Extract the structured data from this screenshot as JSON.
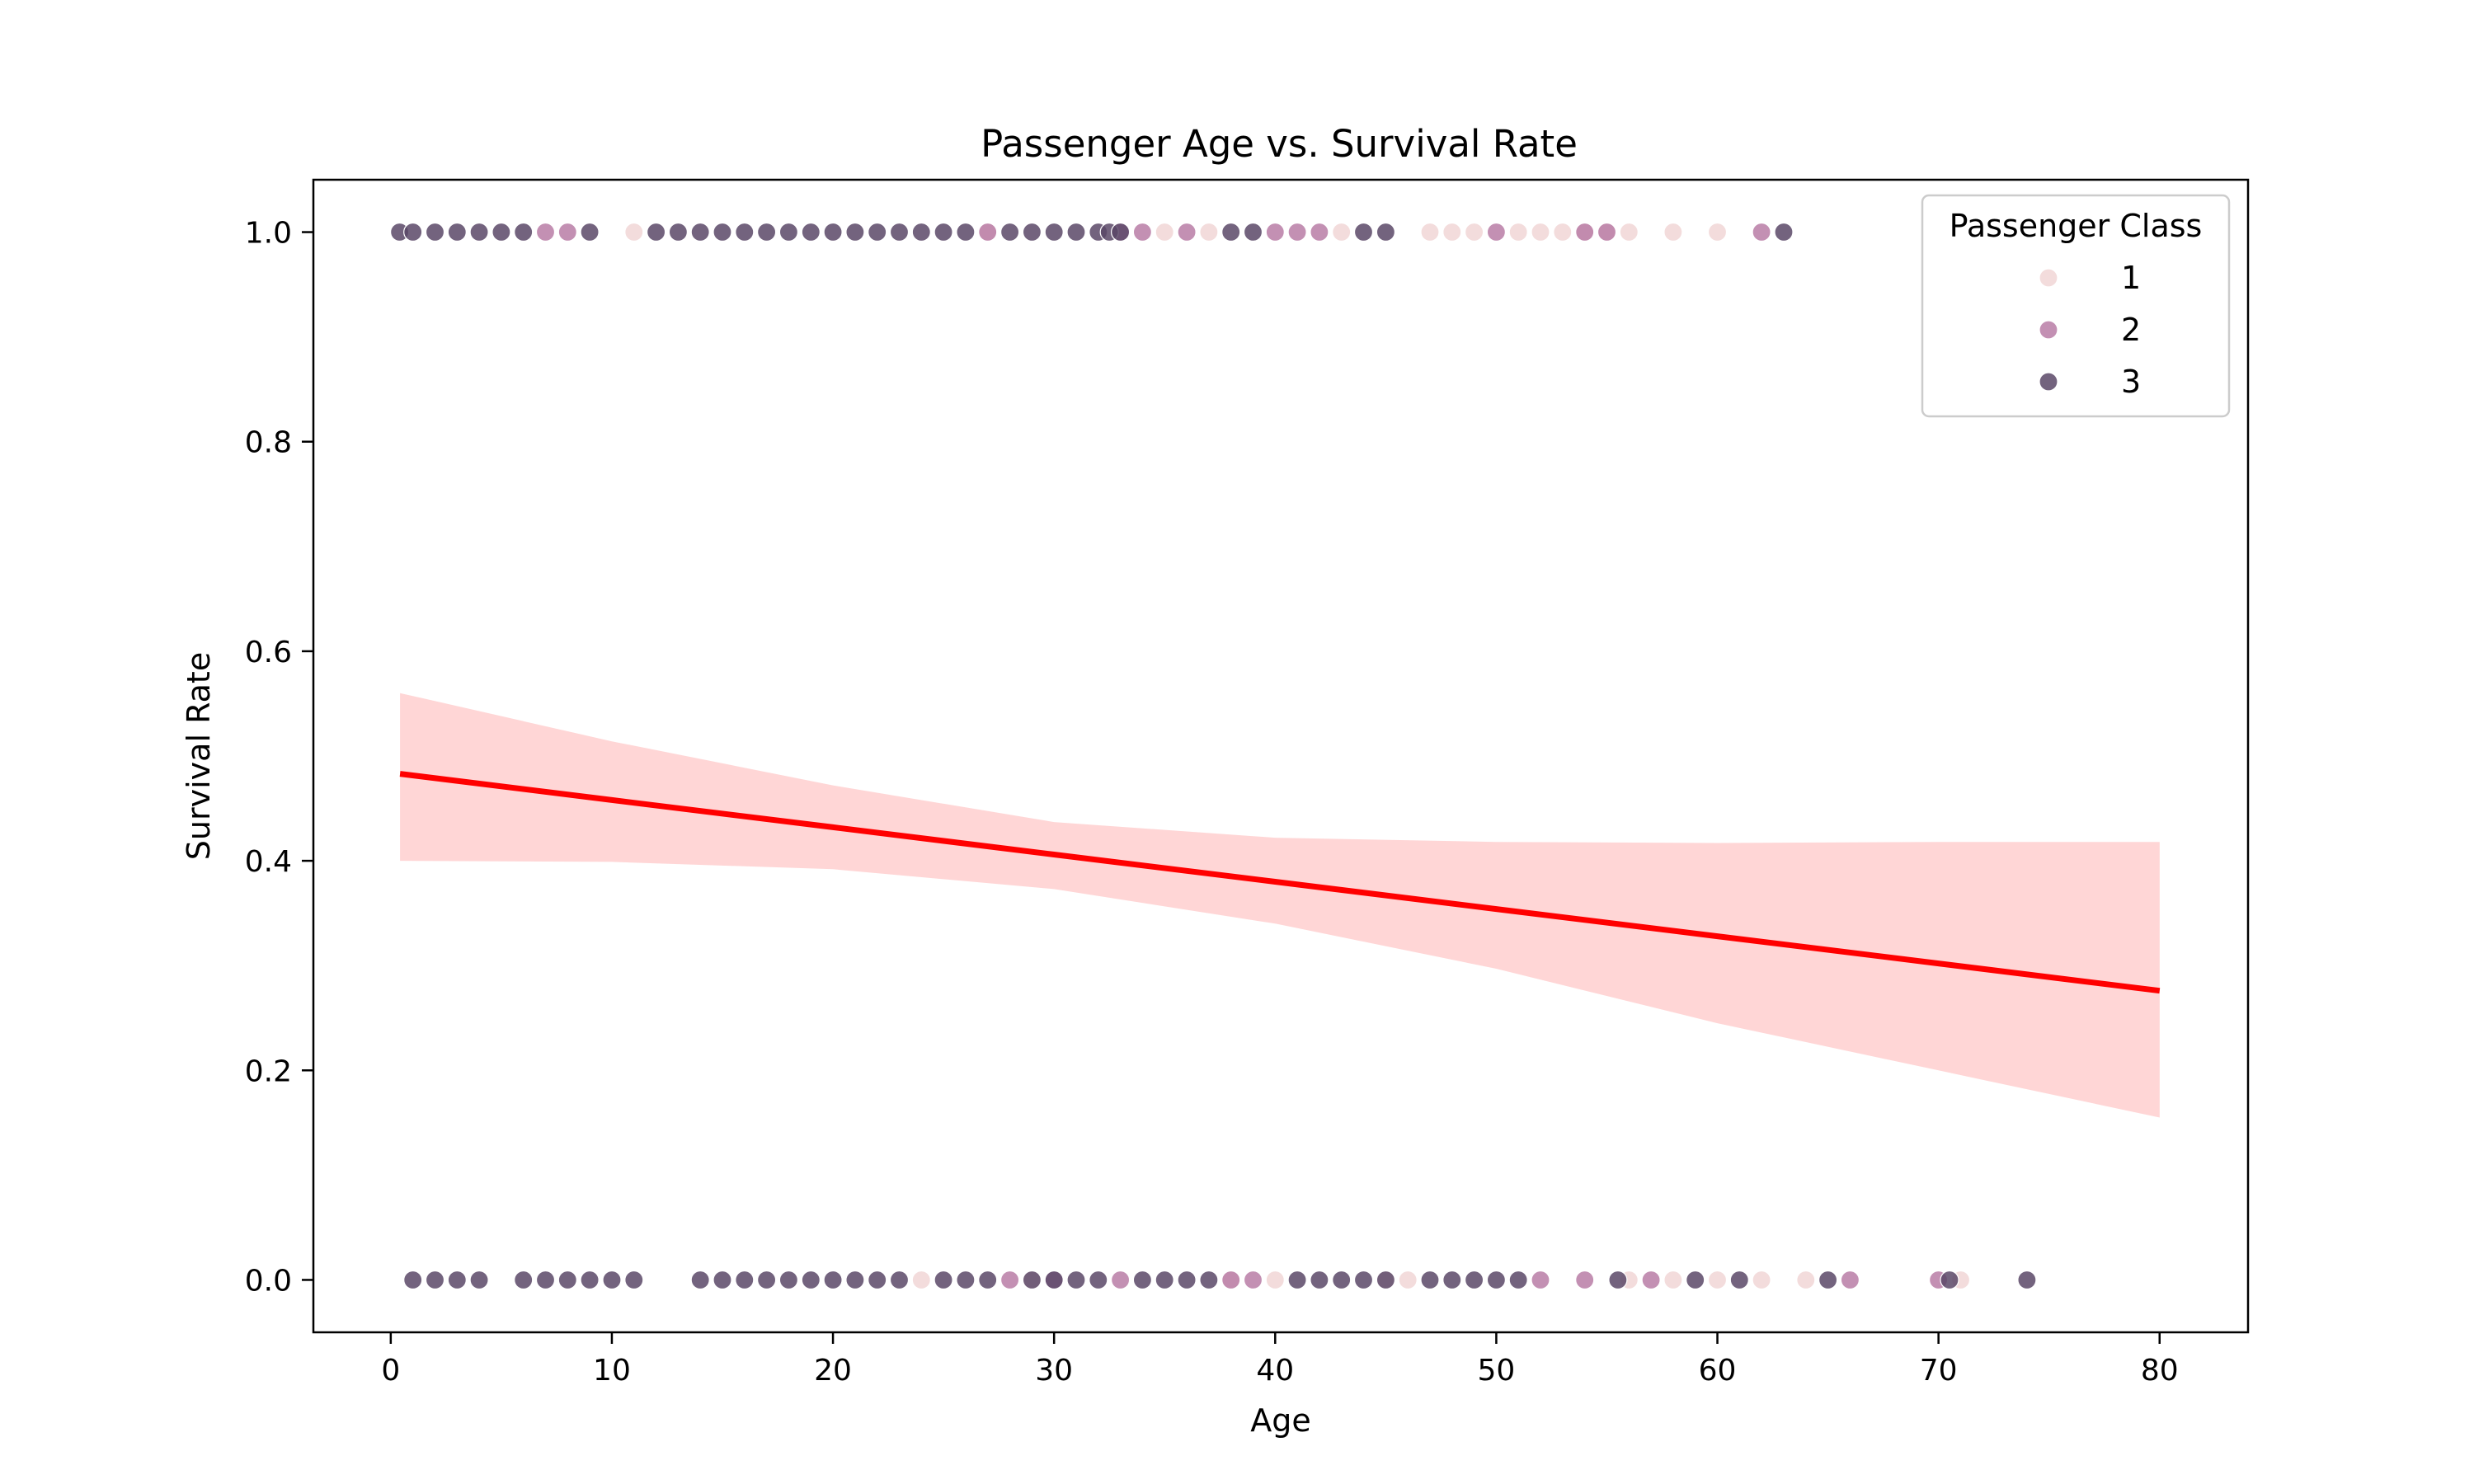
{
  "chart_data": {
    "type": "scatter",
    "title": "Passenger Age vs. Survival Rate",
    "xlabel": "Age",
    "ylabel": "Survival Rate",
    "xlim": [
      -3.5,
      84
    ],
    "ylim": [
      -0.05,
      1.05
    ],
    "xticks": [
      0,
      10,
      20,
      30,
      40,
      50,
      60,
      70,
      80
    ],
    "yticks": [
      0.0,
      0.2,
      0.4,
      0.6,
      0.8,
      1.0
    ],
    "ytick_labels": [
      "0.0",
      "0.2",
      "0.4",
      "0.6",
      "0.8",
      "1.0"
    ],
    "grid": false,
    "legend": {
      "title": "Passenger Class",
      "position": "top-right",
      "entries": [
        {
          "label": "1",
          "color": "#f1d6d6"
        },
        {
          "label": "2",
          "color": "#b97da6"
        },
        {
          "label": "3",
          "color": "#5a4867"
        }
      ]
    },
    "point_opacity": 0.85,
    "series": [
      {
        "name": "1",
        "color": "#f1d6d6",
        "x": [
          11,
          27,
          35,
          37,
          43,
          47,
          48,
          49,
          51,
          52,
          53,
          54,
          55,
          56,
          58,
          60,
          24,
          29,
          38,
          40,
          45,
          46,
          56,
          58,
          60,
          62,
          64,
          71
        ],
        "y": [
          1,
          1,
          1,
          1,
          1,
          1,
          1,
          1,
          1,
          1,
          1,
          1,
          1,
          1,
          1,
          1,
          0,
          0,
          0,
          0,
          0,
          0,
          0,
          0,
          0,
          0,
          0,
          0
        ]
      },
      {
        "name": "2",
        "color": "#b97da6",
        "x": [
          7,
          8,
          27,
          33,
          34,
          36,
          40,
          41,
          42,
          50,
          54,
          55,
          62,
          28,
          30,
          33,
          38,
          39,
          52,
          54,
          57,
          66,
          70
        ],
        "y": [
          1,
          1,
          1,
          1,
          1,
          1,
          1,
          1,
          1,
          1,
          1,
          1,
          1,
          0,
          0,
          0,
          0,
          0,
          0,
          0,
          0,
          0,
          0
        ]
      },
      {
        "name": "3",
        "color": "#5a4867",
        "x": [
          0.4,
          1,
          2,
          3,
          4,
          5,
          6,
          9,
          12,
          13,
          14,
          15,
          16,
          17,
          18,
          19,
          20,
          21,
          22,
          23,
          24,
          25,
          26,
          28,
          29,
          30,
          31,
          32,
          32.5,
          33,
          38,
          39,
          44,
          45,
          63,
          1,
          2,
          3,
          4,
          6,
          7,
          8,
          9,
          10,
          11,
          14,
          15,
          16,
          17,
          18,
          19,
          20,
          21,
          22,
          23,
          25,
          26,
          27,
          29,
          30,
          31,
          32,
          34,
          35,
          36,
          37,
          41,
          42,
          43,
          44,
          45,
          47,
          48,
          49,
          50,
          51,
          55.5,
          59,
          61,
          65,
          70.5,
          74
        ],
        "y": [
          1,
          1,
          1,
          1,
          1,
          1,
          1,
          1,
          1,
          1,
          1,
          1,
          1,
          1,
          1,
          1,
          1,
          1,
          1,
          1,
          1,
          1,
          1,
          1,
          1,
          1,
          1,
          1,
          1,
          1,
          1,
          1,
          1,
          1,
          1,
          0,
          0,
          0,
          0,
          0,
          0,
          0,
          0,
          0,
          0,
          0,
          0,
          0,
          0,
          0,
          0,
          0,
          0,
          0,
          0,
          0,
          0,
          0,
          0,
          0,
          0,
          0,
          0,
          0,
          0,
          0,
          0,
          0,
          0,
          0,
          0,
          0,
          0,
          0,
          0,
          0,
          0,
          0,
          0,
          0,
          0,
          0
        ]
      }
    ],
    "regression": {
      "color": "#ff0000",
      "band_color": "#ffc8c8",
      "x": [
        0.42,
        10,
        20,
        30,
        40,
        50,
        60,
        70,
        80
      ],
      "y": [
        0.483,
        0.458,
        0.432,
        0.406,
        0.38,
        0.354,
        0.328,
        0.302,
        0.276
      ],
      "ci_lower": [
        0.4,
        0.399,
        0.392,
        0.373,
        0.34,
        0.297,
        0.245,
        0.2,
        0.155
      ],
      "ci_upper": [
        0.56,
        0.514,
        0.472,
        0.437,
        0.422,
        0.418,
        0.417,
        0.418,
        0.418
      ]
    }
  }
}
